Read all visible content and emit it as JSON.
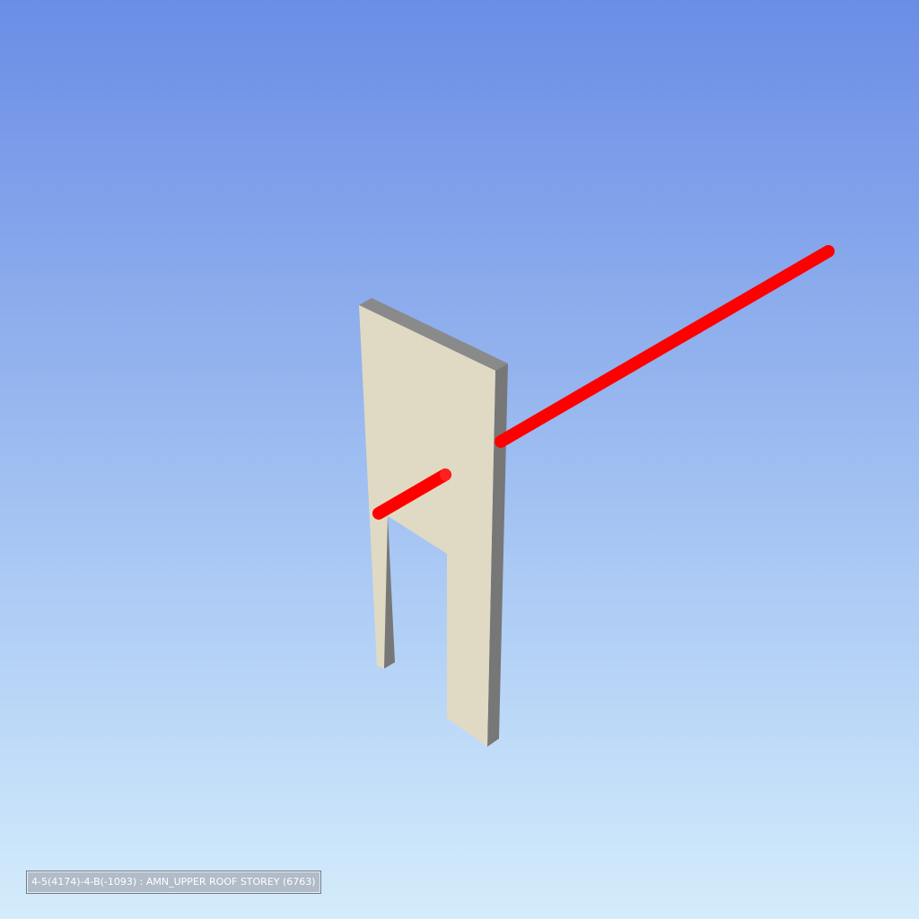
{
  "viewport": {
    "background_top_color": "#6a8de6",
    "background_bottom_color": "#d4ecfb"
  },
  "model": {
    "wall_face_color": "#e0dac4",
    "wall_edge_color": "#7a7a7a",
    "pipe_color": "#ff0000"
  },
  "status": {
    "selection_label": "4-5(4174)-4-B(-1093) : AMN_UPPER ROOF STOREY (6763)"
  }
}
